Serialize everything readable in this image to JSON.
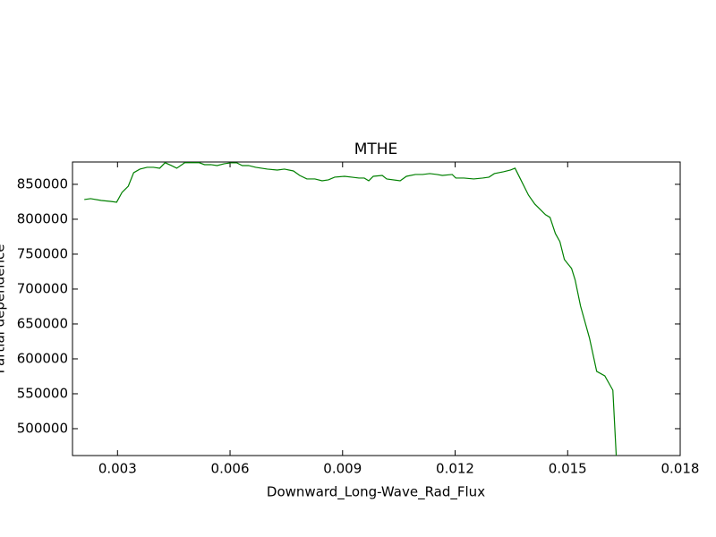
{
  "chart_data": {
    "type": "line",
    "title": "MTHE",
    "x_label": "Downward_Long-Wave_Rad_Flux",
    "y_label": "Partial dependence",
    "xlim": [
      0.0018,
      0.018
    ],
    "ylim": [
      461500,
      882000
    ],
    "xticks": [
      0.003,
      0.006,
      0.009,
      0.012,
      0.015,
      0.018
    ],
    "yticks": [
      500000,
      550000,
      600000,
      650000,
      700000,
      750000,
      800000,
      850000
    ],
    "x": [
      0.002115,
      0.002282,
      0.002569,
      0.002809,
      0.002976,
      0.00312,
      0.003287,
      0.003431,
      0.003598,
      0.003789,
      0.003957,
      0.004124,
      0.004268,
      0.004435,
      0.004579,
      0.004794,
      0.004961,
      0.005177,
      0.00532,
      0.005488,
      0.005655,
      0.005847,
      0.006014,
      0.006181,
      0.006325,
      0.006492,
      0.006684,
      0.006995,
      0.007258,
      0.00745,
      0.007689,
      0.007856,
      0.008048,
      0.008263,
      0.008454,
      0.008622,
      0.008789,
      0.009052,
      0.009243,
      0.009435,
      0.009578,
      0.009698,
      0.009818,
      0.010057,
      0.010176,
      0.010535,
      0.010702,
      0.010942,
      0.011133,
      0.011324,
      0.011516,
      0.011659,
      0.011922,
      0.012018,
      0.012233,
      0.012496,
      0.012735,
      0.012903,
      0.013046,
      0.013286,
      0.013477,
      0.013597,
      0.01374,
      0.013955,
      0.014123,
      0.014242,
      0.01441,
      0.01453,
      0.014673,
      0.014793,
      0.014913,
      0.015104,
      0.0152,
      0.015343,
      0.015583,
      0.015774,
      0.01599,
      0.016205,
      0.016301
    ],
    "series": [
      {
        "name": "MTHE",
        "color": "#008000",
        "values": [
          828200,
          829500,
          826900,
          825600,
          824400,
          838500,
          847400,
          866700,
          871800,
          874400,
          874400,
          873100,
          881000,
          876900,
          873100,
          881000,
          881000,
          881000,
          878200,
          878200,
          876900,
          879500,
          880800,
          880800,
          876900,
          876900,
          874400,
          871800,
          870500,
          871800,
          869200,
          862800,
          857700,
          857700,
          855100,
          856400,
          860300,
          861500,
          860300,
          859000,
          859000,
          855100,
          861500,
          862800,
          857700,
          855100,
          861500,
          864100,
          864100,
          865400,
          864100,
          862800,
          864100,
          859000,
          859000,
          857700,
          859000,
          860300,
          865400,
          868000,
          870500,
          873100,
          857700,
          834600,
          821800,
          815400,
          806500,
          802600,
          779500,
          768000,
          742300,
          729500,
          712900,
          675700,
          629500,
          582100,
          575600,
          555100,
          455000
        ]
      }
    ]
  }
}
